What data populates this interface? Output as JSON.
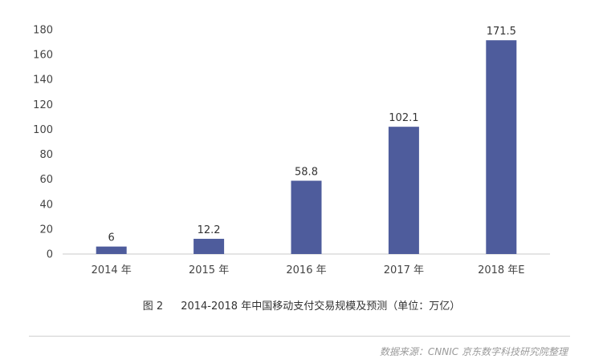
{
  "chart_data": {
    "type": "bar",
    "categories": [
      "2014 年",
      "2015 年",
      "2016 年",
      "2017 年",
      "2018 年E"
    ],
    "values": [
      6,
      12.2,
      58.8,
      102.1,
      171.5
    ],
    "value_labels": [
      "6",
      "12.2",
      "58.8",
      "102.1",
      "171.5"
    ],
    "ylim": [
      0,
      180
    ],
    "yticks": [
      0,
      20,
      40,
      60,
      80,
      100,
      120,
      140,
      160,
      180
    ],
    "grid": false,
    "bar_color": "#4e5c9c",
    "axis_color": "#c8c8c8"
  },
  "caption": {
    "figure_number": "图 2",
    "text": "2014-2018 年中国移动支付交易规模及预测（单位：万亿）"
  },
  "source": "数据来源：CNNIC 京东数字科技研究院整理"
}
